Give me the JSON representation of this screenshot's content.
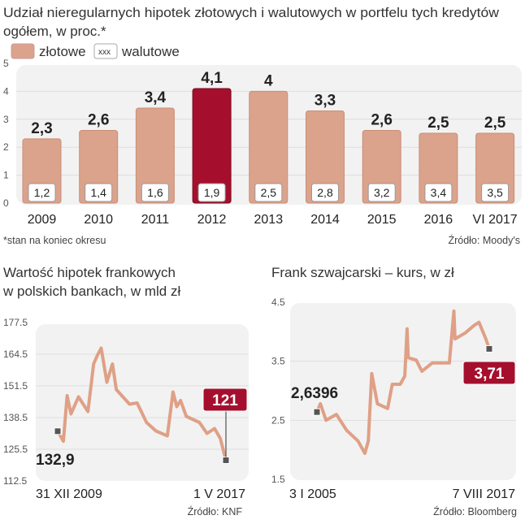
{
  "chart_data": [
    {
      "type": "bar",
      "title": "Udział nieregularnych hipotek złotowych i walutowych w portfelu tych kredytów",
      "title_line2": "ogółem, w proc.*",
      "legend": [
        {
          "name": "złotowe",
          "swatch": "filled"
        },
        {
          "name": "walutowe",
          "swatch": "xxx"
        }
      ],
      "legend_placement": "top-left",
      "categories": [
        "2009",
        "2010",
        "2011",
        "2012",
        "2013",
        "2014",
        "2015",
        "2016",
        "VI 2017"
      ],
      "series": [
        {
          "name": "złotowe",
          "values": [
            "2,3",
            "2,6",
            "3,4",
            "4,1",
            "4",
            "3,3",
            "2,6",
            "2,5",
            "2,5"
          ],
          "numeric": [
            2.3,
            2.6,
            3.4,
            4.1,
            4,
            3.3,
            2.6,
            2.5,
            2.5
          ]
        },
        {
          "name": "walutowe",
          "values": [
            "1,2",
            "1,4",
            "1,6",
            "1,9",
            "2,5",
            "2,8",
            "3,2",
            "3,4",
            "3,5"
          ]
        }
      ],
      "highlight_index": 3,
      "yticks": [
        "0",
        "1",
        "2",
        "3",
        "4",
        "5"
      ],
      "ylim": [
        0,
        5
      ],
      "grid": true,
      "footnote": "*stan na koniec okresu",
      "source": "Źródło: Moody's"
    },
    {
      "type": "line",
      "title": "Wartość hipotek frankowych",
      "title_line2": "w polskich bankach, w mld zł",
      "yticks": [
        "112.5",
        "125.5",
        "138.5",
        "151.5",
        "164.5",
        "177.5"
      ],
      "ylim": [
        112.5,
        177.5
      ],
      "grid": true,
      "x": [
        "2009-12",
        "2010-03",
        "2010-05",
        "2010-07",
        "2010-11",
        "2011-04",
        "2011-07",
        "2011-09",
        "2011-11",
        "2012-02",
        "2012-05",
        "2012-07",
        "2013-02",
        "2013-06",
        "2013-11",
        "2014-04",
        "2014-10",
        "2015-01",
        "2015-03",
        "2015-05",
        "2015-08",
        "2016-03",
        "2016-07",
        "2016-11",
        "2017-02",
        "2017-05"
      ],
      "y": [
        132.9,
        128.8,
        147.5,
        140,
        147,
        141,
        160.5,
        164,
        167,
        153,
        160.5,
        150,
        144,
        144.5,
        136.5,
        133,
        131,
        149,
        143,
        145.5,
        139,
        136.5,
        132,
        134,
        130,
        121
      ],
      "x_start_label": "31 XII 2009",
      "x_end_label": "1 V 2017",
      "start_value_label": "132,9",
      "end_value_label": "121",
      "source": "Źródło: KNF"
    },
    {
      "type": "line",
      "title": "Frank szwajcarski – kurs, w zł",
      "yticks": [
        "1.5",
        "2.5",
        "3.5",
        "4.5"
      ],
      "ylim": [
        1.5,
        4.5
      ],
      "grid": true,
      "x": [
        "2005-01",
        "2005-04",
        "2005-09",
        "2006-06",
        "2007-03",
        "2008-01",
        "2008-07",
        "2008-10",
        "2009-01",
        "2009-06",
        "2010-03",
        "2010-07",
        "2011-02",
        "2011-06",
        "2011-08",
        "2011-09",
        "2012-04",
        "2012-09",
        "2013-06",
        "2014-09",
        "2015-01",
        "2015-02",
        "2015-11",
        "2016-07",
        "2016-11",
        "2017-05",
        "2017-08"
      ],
      "y": [
        2.6396,
        2.78,
        2.5,
        2.6,
        2.33,
        2.15,
        1.94,
        2.15,
        3.29,
        2.78,
        2.7,
        3.11,
        3.11,
        3.25,
        4.05,
        3.56,
        3.52,
        3.33,
        3.47,
        3.47,
        4.35,
        3.88,
        3.98,
        4.11,
        4.16,
        3.88,
        3.71
      ],
      "x_start_label": "3 I 2005",
      "x_end_label": "7 VIII 2017",
      "start_value_label": "2,6396",
      "end_value_label": "3,71",
      "source": "Źródło: Bloomberg"
    }
  ],
  "colors": {
    "bar": "#dba38c",
    "highlight": "#a50f2d",
    "line": "#dfa086",
    "panel": "#f2f2f2",
    "text": "#222222"
  }
}
